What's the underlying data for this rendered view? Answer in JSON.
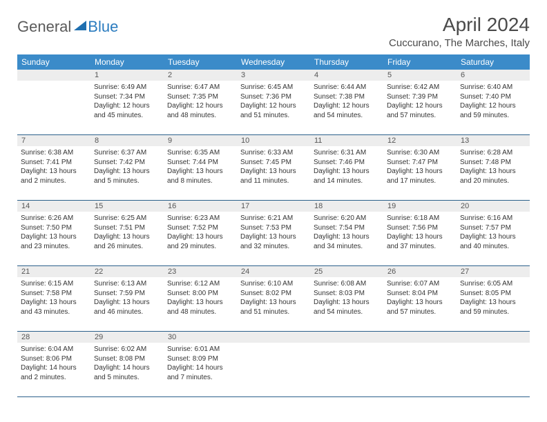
{
  "logo": {
    "part1": "General",
    "part2": "Blue"
  },
  "title": "April 2024",
  "location": "Cuccurano, The Marches, Italy",
  "colors": {
    "header_bg": "#3b8bc9",
    "header_text": "#ffffff",
    "daynum_bg": "#ededed",
    "week_border": "#2a5f8a",
    "body_text": "#333333",
    "logo_gray": "#5a5a5a",
    "logo_blue": "#2a7bbf"
  },
  "typography": {
    "title_fontsize": 28,
    "location_fontsize": 15,
    "dayname_fontsize": 12,
    "cell_fontsize": 10
  },
  "daynames": [
    "Sunday",
    "Monday",
    "Tuesday",
    "Wednesday",
    "Thursday",
    "Friday",
    "Saturday"
  ],
  "weeks": [
    [
      {
        "num": "",
        "lines": []
      },
      {
        "num": "1",
        "lines": [
          "Sunrise: 6:49 AM",
          "Sunset: 7:34 PM",
          "Daylight: 12 hours",
          "and 45 minutes."
        ]
      },
      {
        "num": "2",
        "lines": [
          "Sunrise: 6:47 AM",
          "Sunset: 7:35 PM",
          "Daylight: 12 hours",
          "and 48 minutes."
        ]
      },
      {
        "num": "3",
        "lines": [
          "Sunrise: 6:45 AM",
          "Sunset: 7:36 PM",
          "Daylight: 12 hours",
          "and 51 minutes."
        ]
      },
      {
        "num": "4",
        "lines": [
          "Sunrise: 6:44 AM",
          "Sunset: 7:38 PM",
          "Daylight: 12 hours",
          "and 54 minutes."
        ]
      },
      {
        "num": "5",
        "lines": [
          "Sunrise: 6:42 AM",
          "Sunset: 7:39 PM",
          "Daylight: 12 hours",
          "and 57 minutes."
        ]
      },
      {
        "num": "6",
        "lines": [
          "Sunrise: 6:40 AM",
          "Sunset: 7:40 PM",
          "Daylight: 12 hours",
          "and 59 minutes."
        ]
      }
    ],
    [
      {
        "num": "7",
        "lines": [
          "Sunrise: 6:38 AM",
          "Sunset: 7:41 PM",
          "Daylight: 13 hours",
          "and 2 minutes."
        ]
      },
      {
        "num": "8",
        "lines": [
          "Sunrise: 6:37 AM",
          "Sunset: 7:42 PM",
          "Daylight: 13 hours",
          "and 5 minutes."
        ]
      },
      {
        "num": "9",
        "lines": [
          "Sunrise: 6:35 AM",
          "Sunset: 7:44 PM",
          "Daylight: 13 hours",
          "and 8 minutes."
        ]
      },
      {
        "num": "10",
        "lines": [
          "Sunrise: 6:33 AM",
          "Sunset: 7:45 PM",
          "Daylight: 13 hours",
          "and 11 minutes."
        ]
      },
      {
        "num": "11",
        "lines": [
          "Sunrise: 6:31 AM",
          "Sunset: 7:46 PM",
          "Daylight: 13 hours",
          "and 14 minutes."
        ]
      },
      {
        "num": "12",
        "lines": [
          "Sunrise: 6:30 AM",
          "Sunset: 7:47 PM",
          "Daylight: 13 hours",
          "and 17 minutes."
        ]
      },
      {
        "num": "13",
        "lines": [
          "Sunrise: 6:28 AM",
          "Sunset: 7:48 PM",
          "Daylight: 13 hours",
          "and 20 minutes."
        ]
      }
    ],
    [
      {
        "num": "14",
        "lines": [
          "Sunrise: 6:26 AM",
          "Sunset: 7:50 PM",
          "Daylight: 13 hours",
          "and 23 minutes."
        ]
      },
      {
        "num": "15",
        "lines": [
          "Sunrise: 6:25 AM",
          "Sunset: 7:51 PM",
          "Daylight: 13 hours",
          "and 26 minutes."
        ]
      },
      {
        "num": "16",
        "lines": [
          "Sunrise: 6:23 AM",
          "Sunset: 7:52 PM",
          "Daylight: 13 hours",
          "and 29 minutes."
        ]
      },
      {
        "num": "17",
        "lines": [
          "Sunrise: 6:21 AM",
          "Sunset: 7:53 PM",
          "Daylight: 13 hours",
          "and 32 minutes."
        ]
      },
      {
        "num": "18",
        "lines": [
          "Sunrise: 6:20 AM",
          "Sunset: 7:54 PM",
          "Daylight: 13 hours",
          "and 34 minutes."
        ]
      },
      {
        "num": "19",
        "lines": [
          "Sunrise: 6:18 AM",
          "Sunset: 7:56 PM",
          "Daylight: 13 hours",
          "and 37 minutes."
        ]
      },
      {
        "num": "20",
        "lines": [
          "Sunrise: 6:16 AM",
          "Sunset: 7:57 PM",
          "Daylight: 13 hours",
          "and 40 minutes."
        ]
      }
    ],
    [
      {
        "num": "21",
        "lines": [
          "Sunrise: 6:15 AM",
          "Sunset: 7:58 PM",
          "Daylight: 13 hours",
          "and 43 minutes."
        ]
      },
      {
        "num": "22",
        "lines": [
          "Sunrise: 6:13 AM",
          "Sunset: 7:59 PM",
          "Daylight: 13 hours",
          "and 46 minutes."
        ]
      },
      {
        "num": "23",
        "lines": [
          "Sunrise: 6:12 AM",
          "Sunset: 8:00 PM",
          "Daylight: 13 hours",
          "and 48 minutes."
        ]
      },
      {
        "num": "24",
        "lines": [
          "Sunrise: 6:10 AM",
          "Sunset: 8:02 PM",
          "Daylight: 13 hours",
          "and 51 minutes."
        ]
      },
      {
        "num": "25",
        "lines": [
          "Sunrise: 6:08 AM",
          "Sunset: 8:03 PM",
          "Daylight: 13 hours",
          "and 54 minutes."
        ]
      },
      {
        "num": "26",
        "lines": [
          "Sunrise: 6:07 AM",
          "Sunset: 8:04 PM",
          "Daylight: 13 hours",
          "and 57 minutes."
        ]
      },
      {
        "num": "27",
        "lines": [
          "Sunrise: 6:05 AM",
          "Sunset: 8:05 PM",
          "Daylight: 13 hours",
          "and 59 minutes."
        ]
      }
    ],
    [
      {
        "num": "28",
        "lines": [
          "Sunrise: 6:04 AM",
          "Sunset: 8:06 PM",
          "Daylight: 14 hours",
          "and 2 minutes."
        ]
      },
      {
        "num": "29",
        "lines": [
          "Sunrise: 6:02 AM",
          "Sunset: 8:08 PM",
          "Daylight: 14 hours",
          "and 5 minutes."
        ]
      },
      {
        "num": "30",
        "lines": [
          "Sunrise: 6:01 AM",
          "Sunset: 8:09 PM",
          "Daylight: 14 hours",
          "and 7 minutes."
        ]
      },
      {
        "num": "",
        "lines": []
      },
      {
        "num": "",
        "lines": []
      },
      {
        "num": "",
        "lines": []
      },
      {
        "num": "",
        "lines": []
      }
    ]
  ]
}
